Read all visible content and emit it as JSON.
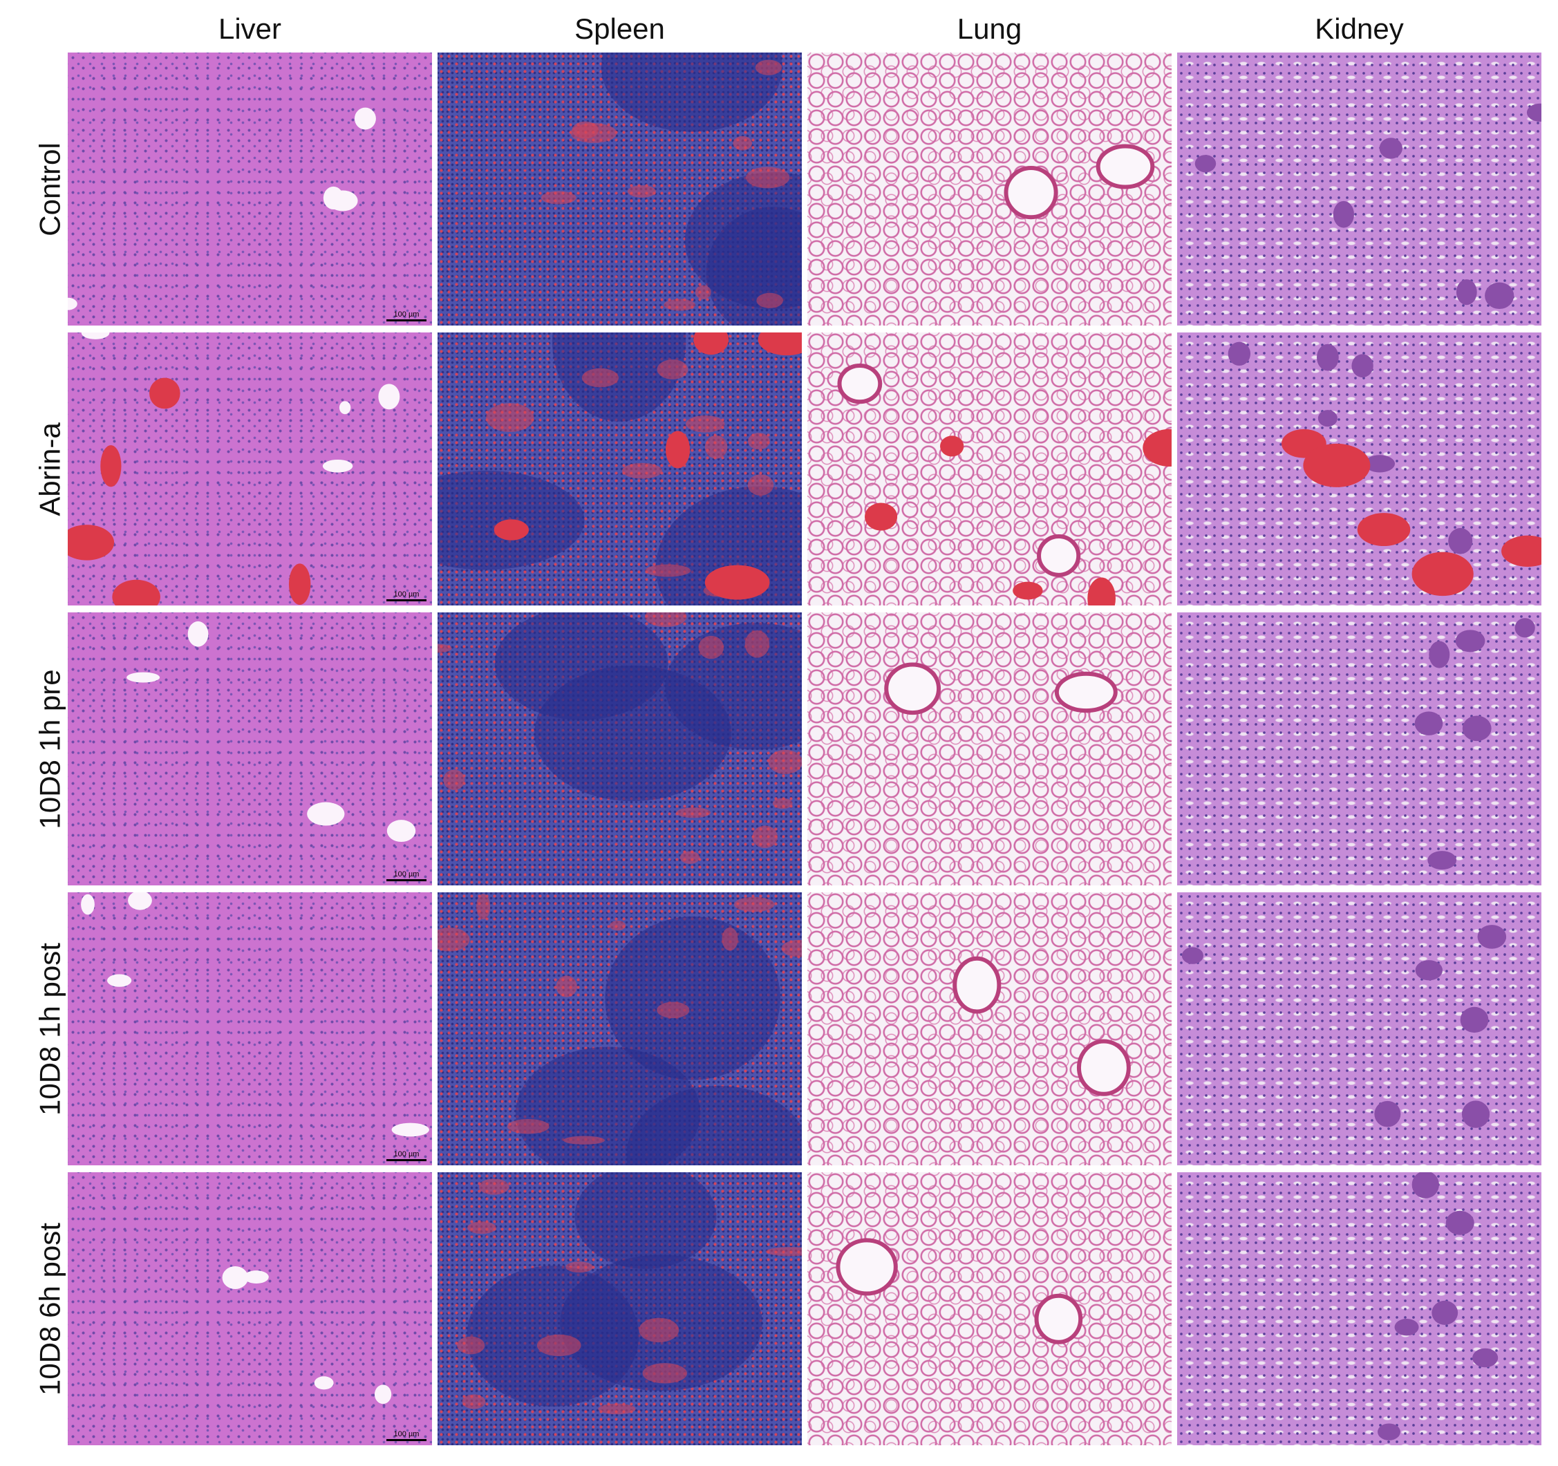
{
  "columns": [
    "Liver",
    "Spleen",
    "Lung",
    "Kidney"
  ],
  "rows": [
    "Control",
    "Abrin-a",
    "10D8 1h pre",
    "10D8 1h post",
    "10D8 6h post"
  ],
  "scale_bar": "100 µm"
}
